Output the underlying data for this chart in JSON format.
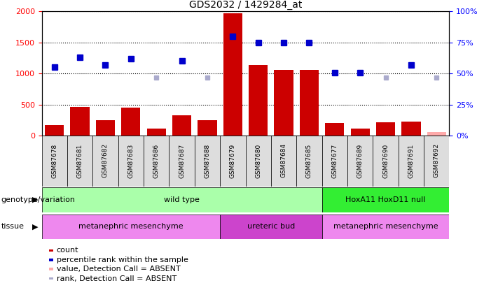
{
  "title": "GDS2032 / 1429284_at",
  "samples": [
    "GSM87678",
    "GSM87681",
    "GSM87682",
    "GSM87683",
    "GSM87686",
    "GSM87687",
    "GSM87688",
    "GSM87679",
    "GSM87680",
    "GSM87684",
    "GSM87685",
    "GSM87677",
    "GSM87689",
    "GSM87690",
    "GSM87691",
    "GSM87692"
  ],
  "counts": [
    175,
    470,
    255,
    455,
    115,
    330,
    250,
    1970,
    1140,
    1060,
    1060,
    205,
    115,
    215,
    230,
    55
  ],
  "ranks": [
    55,
    63,
    57,
    62,
    null,
    60,
    null,
    80,
    75,
    75,
    75,
    51,
    51,
    null,
    57,
    null
  ],
  "absent_ranks_vals": [
    null,
    null,
    null,
    null,
    47,
    null,
    47,
    null,
    null,
    null,
    null,
    null,
    null,
    47,
    null,
    47
  ],
  "count_absent": [
    false,
    false,
    false,
    false,
    false,
    false,
    false,
    false,
    false,
    false,
    false,
    false,
    false,
    false,
    false,
    true
  ],
  "rank_absent": [
    false,
    false,
    false,
    false,
    true,
    false,
    true,
    false,
    false,
    false,
    false,
    false,
    false,
    true,
    false,
    true
  ],
  "ylim_left": [
    0,
    2000
  ],
  "ylim_right": [
    0,
    100
  ],
  "yticks_left": [
    0,
    500,
    1000,
    1500,
    2000
  ],
  "yticks_right": [
    0,
    25,
    50,
    75,
    100
  ],
  "bar_color": "#cc0000",
  "dot_color": "#0000cc",
  "absent_bar_color": "#ffaaaa",
  "absent_dot_color": "#aaaacc",
  "genotype_row": [
    {
      "label": "wild type",
      "start": 0,
      "end": 11,
      "color": "#aaffaa"
    },
    {
      "label": "HoxA11 HoxD11 null",
      "start": 11,
      "end": 16,
      "color": "#33ee33"
    }
  ],
  "tissue_row": [
    {
      "label": "metanephric mesenchyme",
      "start": 0,
      "end": 7,
      "color": "#ee88ee"
    },
    {
      "label": "ureteric bud",
      "start": 7,
      "end": 11,
      "color": "#cc44cc"
    },
    {
      "label": "metanephric mesenchyme",
      "start": 11,
      "end": 16,
      "color": "#ee88ee"
    }
  ],
  "genotype_label": "genotype/variation",
  "tissue_label": "tissue",
  "legend_items": [
    {
      "label": "count",
      "color": "#cc0000",
      "type": "bar"
    },
    {
      "label": "percentile rank within the sample",
      "color": "#0000cc",
      "type": "dot"
    },
    {
      "label": "value, Detection Call = ABSENT",
      "color": "#ffaaaa",
      "type": "bar"
    },
    {
      "label": "rank, Detection Call = ABSENT",
      "color": "#aaaacc",
      "type": "dot"
    }
  ]
}
